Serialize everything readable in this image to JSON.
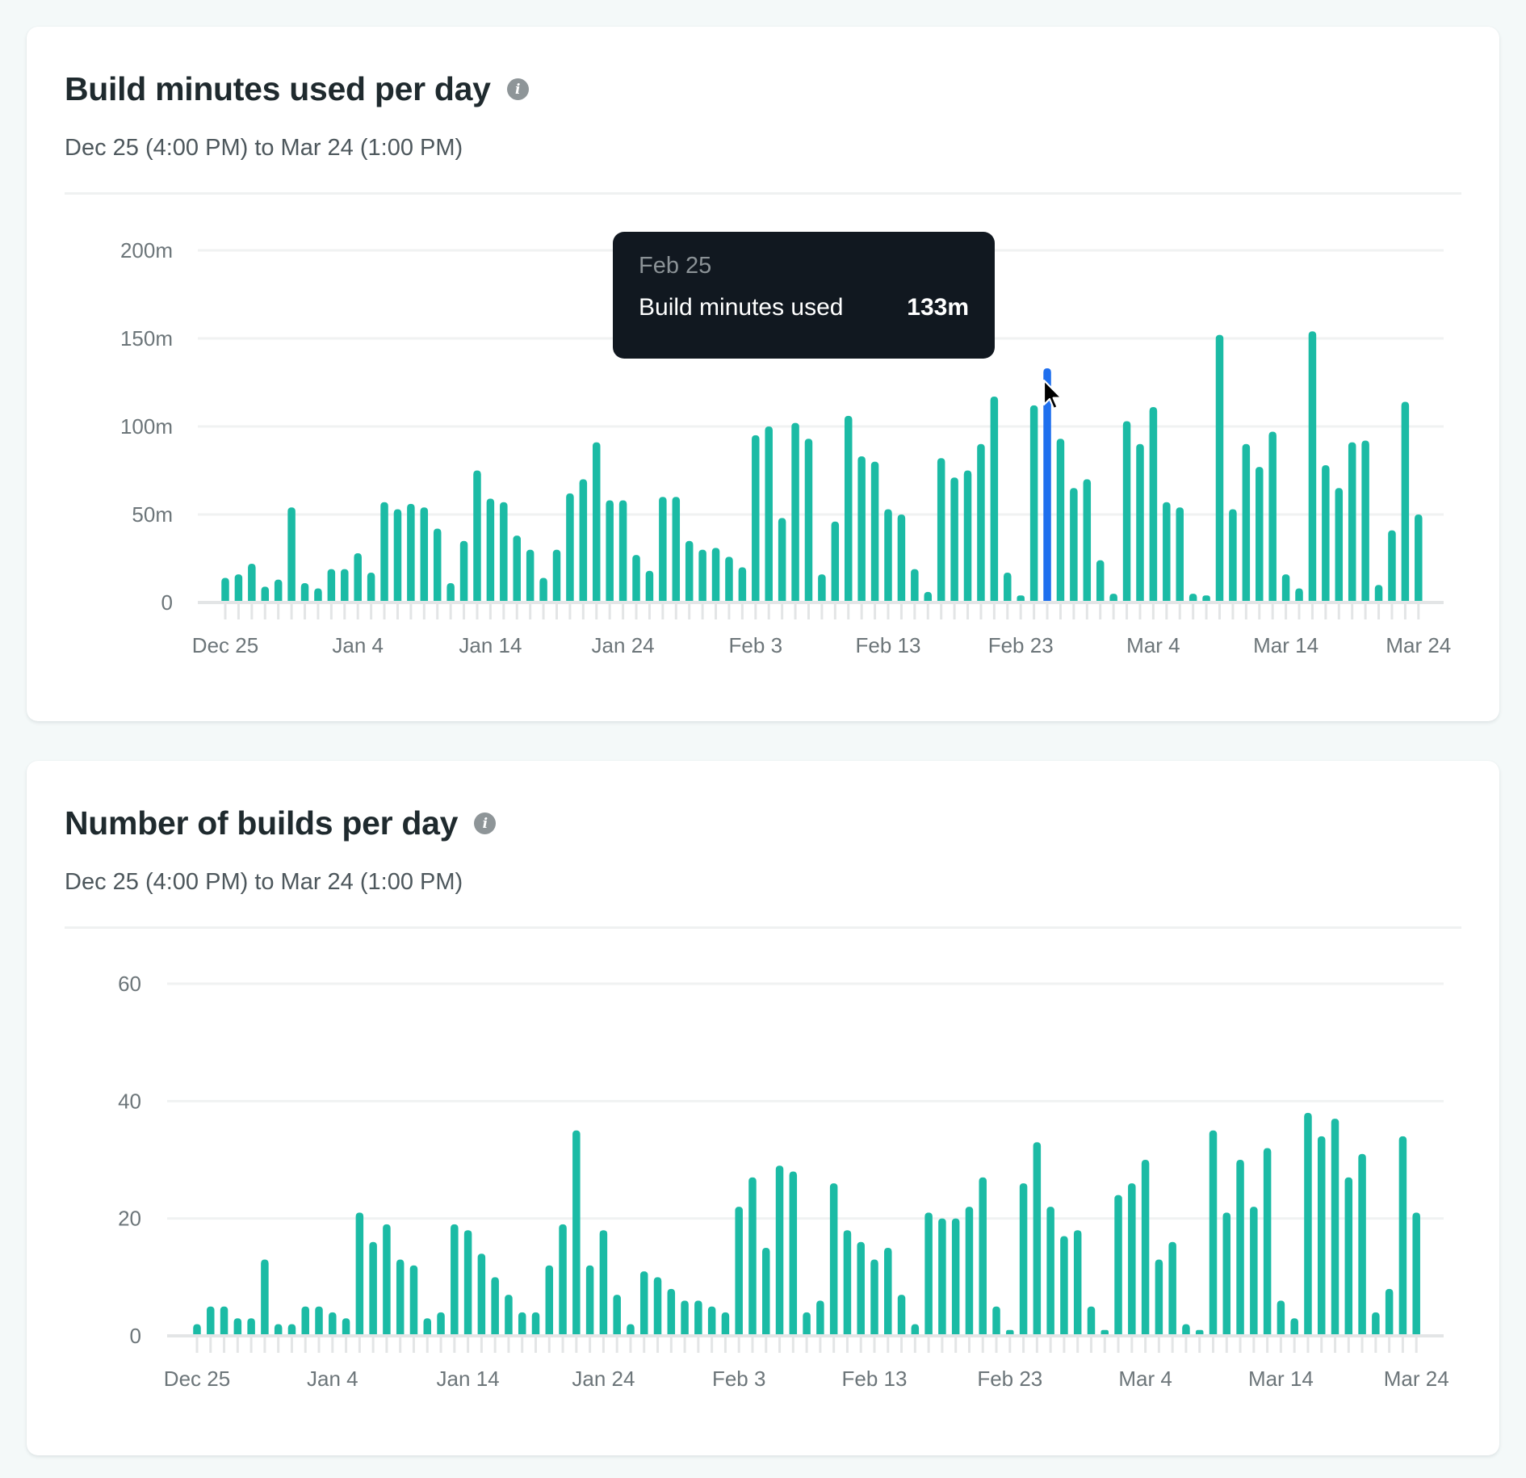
{
  "colors": {
    "bar": "#1bbba5",
    "bar_active": "#1f6fee",
    "tooltip_bg": "#111820",
    "page_bg": "#f4f9f9"
  },
  "cards": [
    {
      "title": "Build minutes used per day",
      "info_icon": "info-icon",
      "subtitle": "Dec 25 (4:00 PM) to Mar 24 (1:00 PM)"
    },
    {
      "title": "Number of builds per day",
      "info_icon": "info-icon",
      "subtitle": "Dec 25 (4:00 PM) to Mar 24 (1:00 PM)"
    }
  ],
  "tooltip": {
    "date": "Feb 25",
    "label": "Build minutes used",
    "value": "133m"
  },
  "chart_data": [
    {
      "type": "bar",
      "title": "Build minutes used per day",
      "subtitle": "Dec 25 (4:00 PM) to Mar 24 (1:00 PM)",
      "xlabel": "",
      "ylabel": "",
      "unit_suffix": "m",
      "ylim": [
        0,
        200
      ],
      "yticks": [
        0,
        50,
        100,
        150,
        200
      ],
      "ytick_labels": [
        "0",
        "50m",
        "100m",
        "150m",
        "200m"
      ],
      "grid": true,
      "x_start": "Dec 25",
      "x_end": "Mar 24",
      "xtick_labels": [
        "Dec 25",
        "Jan 4",
        "Jan 14",
        "Jan 24",
        "Feb 3",
        "Feb 13",
        "Feb 23",
        "Mar 4",
        "Mar 14",
        "Mar 24"
      ],
      "xtick_every_n_days": 10,
      "highlighted": {
        "date": "Feb 25",
        "index": 62,
        "value": 133
      },
      "values": [
        14,
        16,
        22,
        9,
        13,
        54,
        11,
        8,
        19,
        19,
        28,
        17,
        57,
        53,
        56,
        54,
        42,
        11,
        35,
        75,
        59,
        57,
        38,
        30,
        14,
        30,
        62,
        70,
        91,
        58,
        58,
        27,
        18,
        60,
        60,
        35,
        30,
        31,
        26,
        20,
        95,
        100,
        48,
        102,
        93,
        16,
        46,
        106,
        83,
        80,
        53,
        50,
        19,
        6,
        82,
        71,
        75,
        90,
        117,
        17,
        4,
        112,
        133,
        93,
        65,
        70,
        24,
        5,
        103,
        90,
        111,
        57,
        54,
        5,
        4,
        152,
        53,
        90,
        77,
        97,
        16,
        8,
        154,
        78,
        65,
        91,
        92,
        10,
        41,
        114,
        50
      ]
    },
    {
      "type": "bar",
      "title": "Number of builds per day",
      "subtitle": "Dec 25 (4:00 PM) to Mar 24 (1:00 PM)",
      "xlabel": "",
      "ylabel": "",
      "unit_suffix": "",
      "ylim": [
        0,
        60
      ],
      "yticks": [
        0,
        20,
        40,
        60
      ],
      "ytick_labels": [
        "0",
        "20",
        "40",
        "60"
      ],
      "grid": true,
      "x_start": "Dec 25",
      "x_end": "Mar 24",
      "xtick_labels": [
        "Dec 25",
        "Jan 4",
        "Jan 14",
        "Jan 24",
        "Feb 3",
        "Feb 13",
        "Feb 23",
        "Mar 4",
        "Mar 14",
        "Mar 24"
      ],
      "xtick_every_n_days": 10,
      "values": [
        2,
        5,
        5,
        3,
        3,
        13,
        2,
        2,
        5,
        5,
        4,
        3,
        21,
        16,
        19,
        13,
        12,
        3,
        4,
        19,
        18,
        14,
        10,
        7,
        4,
        4,
        12,
        19,
        35,
        12,
        18,
        7,
        2,
        11,
        10,
        8,
        6,
        6,
        5,
        4,
        22,
        27,
        15,
        29,
        28,
        4,
        6,
        26,
        18,
        16,
        13,
        15,
        7,
        2,
        21,
        20,
        20,
        22,
        27,
        5,
        1,
        26,
        33,
        22,
        17,
        18,
        5,
        1,
        24,
        26,
        30,
        13,
        16,
        2,
        1,
        35,
        21,
        30,
        22,
        32,
        6,
        3,
        38,
        34,
        37,
        27,
        31,
        4,
        8,
        34,
        21
      ]
    }
  ]
}
